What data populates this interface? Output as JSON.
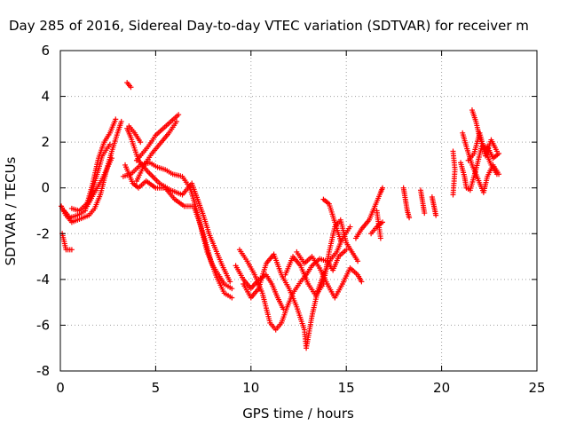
{
  "chart_data": {
    "type": "scatter",
    "title": "Day 285 of 2016, Sidereal Day-to-day VTEC variation (SDTVAR) for receiver m",
    "xlabel": "GPS time / hours",
    "ylabel": "SDTVAR / TECUs",
    "xlim": [
      0,
      25
    ],
    "ylim": [
      -8,
      6
    ],
    "xticks": [
      "0",
      "5",
      "10",
      "15",
      "20",
      "25"
    ],
    "yticks": [
      "-8",
      "-6",
      "-4",
      "-2",
      "0",
      "2",
      "4",
      "6"
    ],
    "grid": true,
    "marker": "plus",
    "color": "#ff0000",
    "series": [
      {
        "tracks": [
          [
            [
              0.05,
              -0.8
            ],
            [
              0.3,
              -1.2
            ],
            [
              0.6,
              -1.5
            ],
            [
              0.9,
              -1.4
            ],
            [
              1.2,
              -1.3
            ],
            [
              1.5,
              -1.2
            ],
            [
              1.8,
              -0.9
            ],
            [
              2.1,
              -0.3
            ],
            [
              2.4,
              0.7
            ],
            [
              2.7,
              1.6
            ],
            [
              3.0,
              2.4
            ],
            [
              3.2,
              2.9
            ]
          ],
          [
            [
              0.1,
              -2.0
            ],
            [
              0.3,
              -2.7
            ],
            [
              0.6,
              -2.7
            ]
          ],
          [
            [
              0.2,
              -1.0
            ],
            [
              0.5,
              -1.3
            ],
            [
              0.9,
              -1.2
            ],
            [
              1.3,
              -1.0
            ],
            [
              1.7,
              0.2
            ],
            [
              2.0,
              1.3
            ],
            [
              2.3,
              2.0
            ],
            [
              2.6,
              2.4
            ],
            [
              2.9,
              3.0
            ]
          ],
          [
            [
              0.6,
              -0.9
            ],
            [
              1.0,
              -1.0
            ],
            [
              1.5,
              -0.6
            ],
            [
              1.9,
              0.5
            ],
            [
              2.2,
              1.4
            ],
            [
              2.6,
              1.9
            ]
          ],
          [
            [
              1.4,
              -0.8
            ],
            [
              1.8,
              -0.2
            ],
            [
              2.2,
              0.4
            ],
            [
              2.7,
              1.3
            ]
          ],
          [
            [
              3.3,
              0.5
            ],
            [
              3.7,
              0.6
            ],
            [
              4.2,
              1.0
            ],
            [
              4.7,
              1.1
            ],
            [
              5.1,
              0.9
            ],
            [
              5.5,
              0.8
            ],
            [
              5.9,
              0.6
            ],
            [
              6.4,
              0.5
            ],
            [
              6.8,
              0.0
            ],
            [
              7.1,
              -0.8
            ],
            [
              7.4,
              -1.8
            ],
            [
              7.7,
              -2.8
            ],
            [
              8.0,
              -3.4
            ],
            [
              8.3,
              -3.8
            ],
            [
              8.6,
              -4.2
            ],
            [
              9.0,
              -4.4
            ]
          ],
          [
            [
              3.4,
              1.0
            ],
            [
              3.8,
              0.2
            ],
            [
              4.1,
              0.0
            ],
            [
              4.5,
              0.3
            ],
            [
              5.0,
              0.0
            ],
            [
              5.5,
              0.0
            ],
            [
              6.0,
              -0.5
            ],
            [
              6.5,
              -0.8
            ],
            [
              7.0,
              -0.8
            ],
            [
              7.3,
              -1.5
            ],
            [
              7.6,
              -2.3
            ],
            [
              7.9,
              -3.2
            ],
            [
              8.2,
              -3.9
            ],
            [
              8.6,
              -4.6
            ],
            [
              9.0,
              -4.8
            ]
          ],
          [
            [
              3.5,
              2.6
            ],
            [
              3.7,
              2.2
            ],
            [
              4.1,
              1.2
            ],
            [
              4.6,
              0.7
            ],
            [
              5.2,
              0.2
            ],
            [
              5.8,
              -0.1
            ],
            [
              6.4,
              -0.3
            ],
            [
              6.9,
              0.2
            ],
            [
              7.2,
              -0.5
            ],
            [
              7.5,
              -1.2
            ],
            [
              7.8,
              -2.0
            ],
            [
              8.1,
              -2.6
            ],
            [
              8.5,
              -3.4
            ],
            [
              8.9,
              -4.1
            ]
          ],
          [
            [
              4.0,
              1.2
            ],
            [
              4.6,
              1.8
            ],
            [
              5.0,
              2.3
            ],
            [
              5.4,
              2.6
            ],
            [
              5.8,
              2.9
            ],
            [
              6.2,
              3.2
            ]
          ],
          [
            [
              4.0,
              0.3
            ],
            [
              4.4,
              1.0
            ],
            [
              4.8,
              1.5
            ],
            [
              5.3,
              2.0
            ],
            [
              5.7,
              2.4
            ],
            [
              6.1,
              2.9
            ]
          ],
          [
            [
              3.5,
              4.6
            ],
            [
              3.7,
              4.4
            ]
          ],
          [
            [
              3.6,
              2.7
            ],
            [
              3.9,
              2.4
            ],
            [
              4.2,
              2.0
            ]
          ],
          [
            [
              9.2,
              -3.4
            ],
            [
              9.6,
              -4.0
            ],
            [
              10.0,
              -4.4
            ],
            [
              10.4,
              -4.0
            ],
            [
              10.8,
              -3.8
            ],
            [
              11.1,
              -4.2
            ],
            [
              11.4,
              -4.8
            ],
            [
              11.7,
              -5.3
            ]
          ],
          [
            [
              9.4,
              -2.7
            ],
            [
              9.8,
              -3.2
            ],
            [
              10.2,
              -3.8
            ],
            [
              10.6,
              -4.6
            ],
            [
              11.0,
              -5.9
            ],
            [
              11.3,
              -6.2
            ],
            [
              11.6,
              -5.9
            ],
            [
              11.9,
              -5.2
            ],
            [
              12.2,
              -4.6
            ],
            [
              12.6,
              -4.1
            ],
            [
              12.9,
              -3.8
            ],
            [
              13.2,
              -3.4
            ],
            [
              13.6,
              -3.1
            ],
            [
              14.0,
              -3.2
            ],
            [
              14.3,
              -3.6
            ],
            [
              14.6,
              -3.0
            ],
            [
              15.0,
              -2.7
            ]
          ],
          [
            [
              9.6,
              -4.2
            ],
            [
              10.0,
              -4.8
            ],
            [
              10.4,
              -4.4
            ],
            [
              10.8,
              -3.3
            ],
            [
              11.2,
              -2.9
            ],
            [
              11.6,
              -3.8
            ],
            [
              12.0,
              -4.4
            ],
            [
              12.4,
              -5.2
            ],
            [
              12.8,
              -6.2
            ],
            [
              12.9,
              -7.0
            ],
            [
              13.2,
              -5.6
            ],
            [
              13.5,
              -4.5
            ],
            [
              13.8,
              -3.8
            ],
            [
              14.2,
              -3.1
            ],
            [
              14.5,
              -2.8
            ],
            [
              14.8,
              -2.2
            ],
            [
              15.2,
              -1.7
            ]
          ],
          [
            [
              11.8,
              -3.8
            ],
            [
              12.2,
              -3.0
            ],
            [
              12.6,
              -3.4
            ],
            [
              13.0,
              -4.2
            ],
            [
              13.4,
              -4.7
            ],
            [
              13.8,
              -4.2
            ],
            [
              14.1,
              -2.8
            ],
            [
              14.4,
              -1.7
            ],
            [
              14.7,
              -1.4
            ],
            [
              15.0,
              -2.4
            ],
            [
              15.3,
              -2.8
            ],
            [
              15.6,
              -3.2
            ]
          ],
          [
            [
              12.4,
              -2.8
            ],
            [
              12.8,
              -3.3
            ],
            [
              13.2,
              -3.0
            ],
            [
              13.6,
              -3.5
            ],
            [
              14.0,
              -4.2
            ],
            [
              14.4,
              -4.8
            ],
            [
              14.8,
              -4.2
            ],
            [
              15.2,
              -3.5
            ],
            [
              15.6,
              -3.8
            ],
            [
              15.8,
              -4.1
            ]
          ],
          [
            [
              13.8,
              -0.5
            ],
            [
              14.1,
              -0.7
            ],
            [
              14.4,
              -1.5
            ],
            [
              14.7,
              -2.3
            ]
          ],
          [
            [
              15.5,
              -2.2
            ],
            [
              15.8,
              -1.8
            ],
            [
              16.2,
              -1.4
            ],
            [
              16.5,
              -0.8
            ],
            [
              16.8,
              -0.2
            ],
            [
              16.9,
              0.0
            ]
          ],
          [
            [
              16.3,
              -2.0
            ],
            [
              16.6,
              -1.7
            ],
            [
              16.9,
              -1.5
            ]
          ],
          [
            [
              16.8,
              -2.2
            ],
            [
              16.6,
              -1.0
            ]
          ],
          [
            [
              18.0,
              0.0
            ],
            [
              18.1,
              -0.5
            ],
            [
              18.2,
              -1.0
            ],
            [
              18.3,
              -1.3
            ]
          ],
          [
            [
              18.9,
              -0.1
            ],
            [
              19.0,
              -0.6
            ],
            [
              19.1,
              -1.1
            ]
          ],
          [
            [
              19.5,
              -0.4
            ],
            [
              19.6,
              -0.8
            ],
            [
              19.7,
              -1.2
            ]
          ],
          [
            [
              20.6,
              1.6
            ],
            [
              20.7,
              0.8
            ],
            [
              20.6,
              -0.3
            ]
          ],
          [
            [
              21.0,
              1.1
            ],
            [
              21.2,
              0.5
            ],
            [
              21.3,
              0.0
            ],
            [
              21.5,
              -0.1
            ],
            [
              21.8,
              0.8
            ],
            [
              22.1,
              1.8
            ],
            [
              22.4,
              1.8
            ],
            [
              22.7,
              1.3
            ],
            [
              23.0,
              1.5
            ]
          ],
          [
            [
              21.1,
              2.4
            ],
            [
              21.3,
              1.8
            ],
            [
              21.6,
              1.0
            ],
            [
              21.9,
              0.4
            ],
            [
              22.2,
              -0.2
            ],
            [
              22.4,
              0.5
            ],
            [
              22.7,
              1.0
            ],
            [
              23.0,
              0.6
            ]
          ],
          [
            [
              21.6,
              3.4
            ],
            [
              21.8,
              2.9
            ],
            [
              22.0,
              2.2
            ],
            [
              22.3,
              1.6
            ],
            [
              22.6,
              1.0
            ],
            [
              22.9,
              0.6
            ]
          ],
          [
            [
              21.4,
              1.2
            ],
            [
              21.7,
              1.5
            ],
            [
              22.0,
              2.4
            ],
            [
              22.3,
              1.4
            ],
            [
              22.6,
              2.1
            ],
            [
              22.9,
              1.6
            ]
          ]
        ]
      }
    ]
  }
}
